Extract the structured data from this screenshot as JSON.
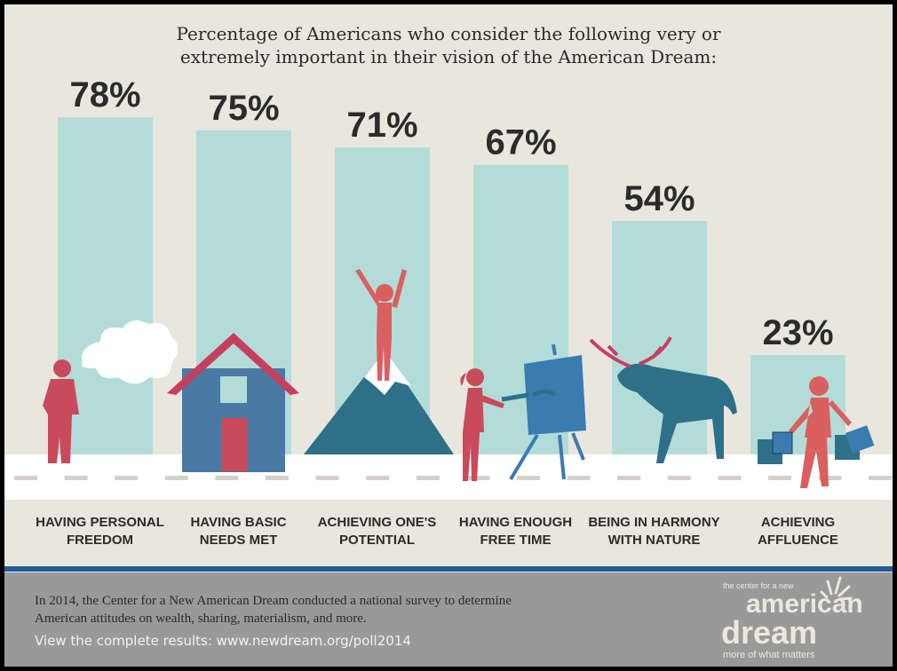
{
  "chart_data": {
    "type": "bar",
    "title": "Percentage of Americans who consider the following very or extremely important in their vision of the American Dream:",
    "categories": [
      "HAVING PERSONAL FREEDOM",
      "HAVING BASIC NEEDS MET",
      "ACHIEVING ONE'S POTENTIAL",
      "HAVING ENOUGH FREE TIME",
      "BEING IN HARMONY WITH NATURE",
      "ACHIEVING AFFLUENCE"
    ],
    "category_lines": [
      [
        "HAVING PERSONAL",
        "FREEDOM"
      ],
      [
        "HAVING BASIC",
        "NEEDS MET"
      ],
      [
        "ACHIEVING ONE'S",
        "POTENTIAL"
      ],
      [
        "HAVING ENOUGH",
        "FREE TIME"
      ],
      [
        "BEING IN HARMONY",
        "WITH NATURE"
      ],
      [
        "ACHIEVING",
        "AFFLUENCE"
      ]
    ],
    "values": [
      78,
      75,
      71,
      67,
      54,
      23
    ],
    "data_labels": [
      "78%",
      "75%",
      "71%",
      "67%",
      "54%",
      "23%"
    ],
    "ylim": [
      0,
      100
    ],
    "grid": false,
    "bar_color": "#b3dcd9"
  },
  "footer": {
    "survey_text_line1": "In 2014, the Center for a New American Dream conducted a national survey to determine",
    "survey_text_line2": "American attitudes on wealth, sharing, materialism, and more.",
    "link_text": "View the complete results: www.newdream.org/poll2014"
  },
  "logo": {
    "small": "the center for a new",
    "line1": "american",
    "line2": "dream",
    "tagline": "more of what matters"
  },
  "colors": {
    "background": "#e9e6de",
    "road": "#ffffff",
    "figure_red": "#c94a5a",
    "teal": "#2e7088",
    "blue": "#4a7aa3",
    "stripe": "#1f5c99",
    "footer": "#999999"
  }
}
